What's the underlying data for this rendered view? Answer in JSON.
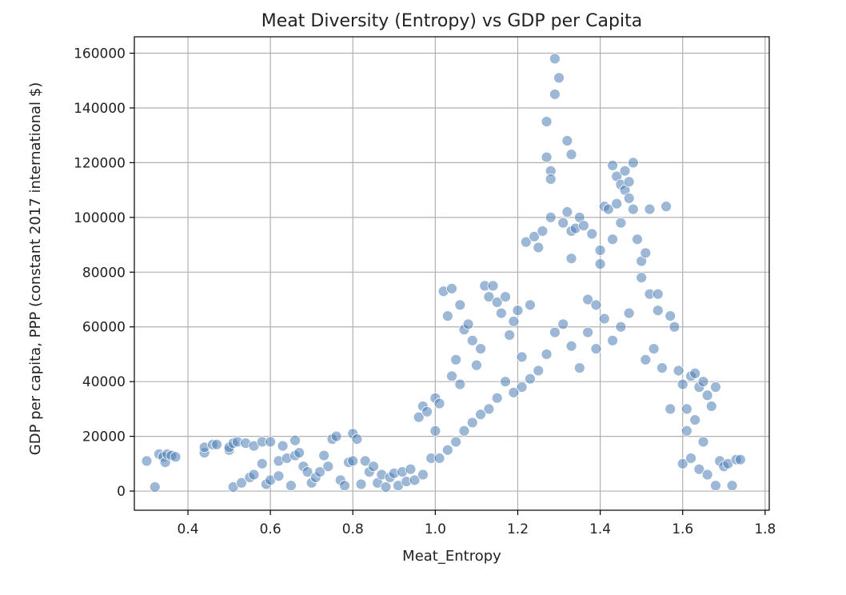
{
  "chart_data": {
    "type": "scatter",
    "title": "Meat Diversity (Entropy) vs GDP per Capita",
    "xlabel": "Meat_Entropy",
    "ylabel": "GDP per capita, PPP (constant 2017 international $)",
    "xlim": [
      0.27,
      1.81
    ],
    "ylim": [
      -7000,
      166000
    ],
    "xticks": [
      0.4,
      0.6,
      0.8,
      1.0,
      1.2,
      1.4,
      1.6,
      1.8
    ],
    "yticks": [
      0,
      20000,
      40000,
      60000,
      80000,
      100000,
      120000,
      140000,
      160000
    ],
    "grid": true,
    "marker_color": "#4a7eb5",
    "marker_edge_color": "#ffffff",
    "marker_opacity": 0.55,
    "points": [
      [
        0.3,
        11000
      ],
      [
        0.32,
        1500
      ],
      [
        0.33,
        13500
      ],
      [
        0.34,
        12500
      ],
      [
        0.345,
        10500
      ],
      [
        0.35,
        13500
      ],
      [
        0.36,
        13000
      ],
      [
        0.37,
        12500
      ],
      [
        0.44,
        14000
      ],
      [
        0.44,
        16000
      ],
      [
        0.46,
        17000
      ],
      [
        0.47,
        17000
      ],
      [
        0.5,
        15000
      ],
      [
        0.5,
        16000
      ],
      [
        0.51,
        17500
      ],
      [
        0.52,
        18000
      ],
      [
        0.51,
        1500
      ],
      [
        0.53,
        3000
      ],
      [
        0.54,
        17500
      ],
      [
        0.55,
        5000
      ],
      [
        0.56,
        6000
      ],
      [
        0.56,
        16500
      ],
      [
        0.58,
        18000
      ],
      [
        0.58,
        10000
      ],
      [
        0.59,
        2500
      ],
      [
        0.6,
        18000
      ],
      [
        0.6,
        4000
      ],
      [
        0.62,
        11000
      ],
      [
        0.62,
        5500
      ],
      [
        0.63,
        16500
      ],
      [
        0.64,
        12000
      ],
      [
        0.65,
        2000
      ],
      [
        0.66,
        18500
      ],
      [
        0.66,
        13000
      ],
      [
        0.67,
        14000
      ],
      [
        0.68,
        9000
      ],
      [
        0.69,
        7000
      ],
      [
        0.7,
        3000
      ],
      [
        0.71,
        5000
      ],
      [
        0.72,
        7000
      ],
      [
        0.73,
        13000
      ],
      [
        0.74,
        9000
      ],
      [
        0.75,
        19000
      ],
      [
        0.76,
        20000
      ],
      [
        0.77,
        4000
      ],
      [
        0.78,
        2000
      ],
      [
        0.79,
        10500
      ],
      [
        0.8,
        11000
      ],
      [
        0.8,
        21000
      ],
      [
        0.81,
        19000
      ],
      [
        0.82,
        2500
      ],
      [
        0.83,
        11000
      ],
      [
        0.84,
        7000
      ],
      [
        0.85,
        9000
      ],
      [
        0.86,
        3000
      ],
      [
        0.87,
        6000
      ],
      [
        0.88,
        1500
      ],
      [
        0.89,
        5000
      ],
      [
        0.9,
        6500
      ],
      [
        0.91,
        2000
      ],
      [
        0.92,
        7000
      ],
      [
        0.93,
        3500
      ],
      [
        0.94,
        8000
      ],
      [
        0.95,
        4000
      ],
      [
        0.96,
        27000
      ],
      [
        0.97,
        6000
      ],
      [
        0.97,
        31000
      ],
      [
        0.98,
        29000
      ],
      [
        0.99,
        12000
      ],
      [
        1.0,
        22000
      ],
      [
        1.0,
        34000
      ],
      [
        1.01,
        32000
      ],
      [
        1.02,
        73000
      ],
      [
        1.03,
        64000
      ],
      [
        1.04,
        74000
      ],
      [
        1.04,
        42000
      ],
      [
        1.05,
        48000
      ],
      [
        1.06,
        39000
      ],
      [
        1.06,
        68000
      ],
      [
        1.07,
        59000
      ],
      [
        1.08,
        61000
      ],
      [
        1.09,
        55000
      ],
      [
        1.1,
        46000
      ],
      [
        1.11,
        52000
      ],
      [
        1.12,
        75000
      ],
      [
        1.13,
        71000
      ],
      [
        1.14,
        75000
      ],
      [
        1.15,
        69000
      ],
      [
        1.16,
        65000
      ],
      [
        1.17,
        71000
      ],
      [
        1.18,
        57000
      ],
      [
        1.19,
        62000
      ],
      [
        1.2,
        66000
      ],
      [
        1.21,
        49000
      ],
      [
        1.22,
        91000
      ],
      [
        1.23,
        68000
      ],
      [
        1.24,
        93000
      ],
      [
        1.25,
        89000
      ],
      [
        1.26,
        95000
      ],
      [
        1.27,
        122000
      ],
      [
        1.27,
        135000
      ],
      [
        1.28,
        117000
      ],
      [
        1.28,
        114000
      ],
      [
        1.28,
        100000
      ],
      [
        1.29,
        158000
      ],
      [
        1.29,
        145000
      ],
      [
        1.3,
        151000
      ],
      [
        1.31,
        98000
      ],
      [
        1.32,
        102000
      ],
      [
        1.32,
        128000
      ],
      [
        1.33,
        123000
      ],
      [
        1.33,
        95000
      ],
      [
        1.33,
        85000
      ],
      [
        1.34,
        96000
      ],
      [
        1.35,
        100000
      ],
      [
        1.36,
        97000
      ],
      [
        1.37,
        70000
      ],
      [
        1.38,
        94000
      ],
      [
        1.39,
        68000
      ],
      [
        1.4,
        83000
      ],
      [
        1.4,
        88000
      ],
      [
        1.41,
        104000
      ],
      [
        1.42,
        103000
      ],
      [
        1.43,
        92000
      ],
      [
        1.43,
        119000
      ],
      [
        1.44,
        105000
      ],
      [
        1.44,
        115000
      ],
      [
        1.45,
        98000
      ],
      [
        1.45,
        112000
      ],
      [
        1.46,
        110000
      ],
      [
        1.46,
        117000
      ],
      [
        1.47,
        113000
      ],
      [
        1.47,
        107000
      ],
      [
        1.48,
        120000
      ],
      [
        1.48,
        103000
      ],
      [
        1.49,
        92000
      ],
      [
        1.5,
        78000
      ],
      [
        1.5,
        84000
      ],
      [
        1.51,
        87000
      ],
      [
        1.52,
        103000
      ],
      [
        1.52,
        72000
      ],
      [
        1.54,
        66000
      ],
      [
        1.54,
        72000
      ],
      [
        1.56,
        104000
      ],
      [
        1.57,
        64000
      ],
      [
        1.58,
        60000
      ],
      [
        1.59,
        44000
      ],
      [
        1.6,
        39000
      ],
      [
        1.61,
        30000
      ],
      [
        1.62,
        42000
      ],
      [
        1.63,
        43000
      ],
      [
        1.64,
        38000
      ],
      [
        1.65,
        40000
      ],
      [
        1.66,
        35000
      ],
      [
        1.67,
        31000
      ],
      [
        1.68,
        38000
      ],
      [
        1.69,
        11000
      ],
      [
        1.7,
        9000
      ],
      [
        1.71,
        10000
      ],
      [
        1.72,
        2000
      ],
      [
        1.73,
        11500
      ],
      [
        1.74,
        11500
      ],
      [
        1.6,
        10000
      ],
      [
        1.62,
        12000
      ],
      [
        1.64,
        8000
      ],
      [
        1.66,
        6000
      ],
      [
        1.68,
        2000
      ],
      [
        1.63,
        26000
      ],
      [
        1.61,
        22000
      ],
      [
        1.65,
        18000
      ],
      [
        1.57,
        30000
      ],
      [
        1.55,
        45000
      ],
      [
        1.53,
        52000
      ],
      [
        1.51,
        48000
      ],
      [
        1.47,
        65000
      ],
      [
        1.45,
        60000
      ],
      [
        1.43,
        55000
      ],
      [
        1.41,
        63000
      ],
      [
        1.39,
        52000
      ],
      [
        1.37,
        58000
      ],
      [
        1.35,
        45000
      ],
      [
        1.33,
        53000
      ],
      [
        1.31,
        61000
      ],
      [
        1.29,
        58000
      ],
      [
        1.27,
        50000
      ],
      [
        1.25,
        44000
      ],
      [
        1.23,
        41000
      ],
      [
        1.21,
        38000
      ],
      [
        1.19,
        36000
      ],
      [
        1.17,
        40000
      ],
      [
        1.15,
        34000
      ],
      [
        1.13,
        30000
      ],
      [
        1.11,
        28000
      ],
      [
        1.09,
        25000
      ],
      [
        1.07,
        22000
      ],
      [
        1.05,
        18000
      ],
      [
        1.03,
        15000
      ],
      [
        1.01,
        12000
      ]
    ]
  }
}
